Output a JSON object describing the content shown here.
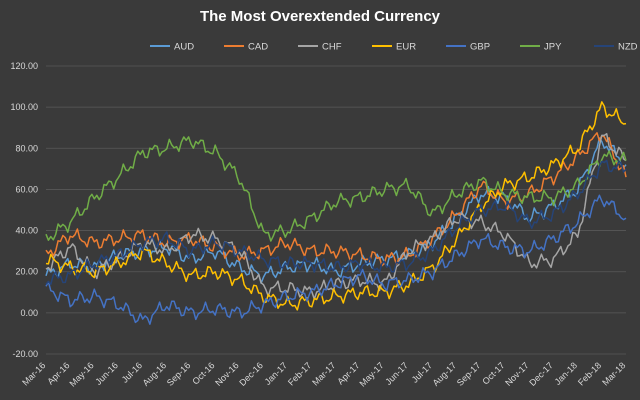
{
  "chart_data": {
    "type": "line",
    "title": "The Most Overextended Currency",
    "ylim": [
      -20,
      120
    ],
    "yticks": [
      "-20.00",
      "0.00",
      "20.00",
      "40.00",
      "60.00",
      "80.00",
      "100.00",
      "120.00"
    ],
    "categories": [
      "Mar-16",
      "Apr-16",
      "May-16",
      "Jun-16",
      "Jul-16",
      "Aug-16",
      "Sep-16",
      "Oct-16",
      "Nov-16",
      "Dec-16",
      "Jan-17",
      "Feb-17",
      "Mar-17",
      "Apr-17",
      "May-17",
      "Jun-17",
      "Jul-17",
      "Aug-17",
      "Sep-17",
      "Oct-17",
      "Nov-17",
      "Dec-17",
      "Jan-18",
      "Feb-18",
      "Mar-18"
    ],
    "legend_position": "top",
    "grid": true,
    "series": [
      {
        "name": "AUD",
        "color": "#5b9bd5",
        "values": [
          18,
          24,
          22,
          28,
          30,
          32,
          26,
          30,
          22,
          18,
          22,
          24,
          20,
          24,
          26,
          28,
          34,
          46,
          58,
          56,
          46,
          52,
          60,
          84,
          72
        ]
      },
      {
        "name": "CAD",
        "color": "#ed7d31",
        "values": [
          28,
          38,
          34,
          36,
          38,
          34,
          36,
          32,
          28,
          30,
          34,
          30,
          30,
          28,
          26,
          28,
          36,
          48,
          62,
          54,
          58,
          66,
          76,
          88,
          66
        ]
      },
      {
        "name": "CHF",
        "color": "#a5a5a5",
        "values": [
          22,
          32,
          20,
          26,
          34,
          30,
          38,
          36,
          30,
          12,
          12,
          10,
          14,
          16,
          14,
          30,
          36,
          46,
          44,
          38,
          24,
          26,
          38,
          86,
          74
        ]
      },
      {
        "name": "EUR",
        "color": "#ffc000",
        "values": [
          26,
          22,
          20,
          24,
          30,
          24,
          18,
          20,
          16,
          8,
          4,
          6,
          8,
          10,
          10,
          14,
          22,
          36,
          52,
          62,
          66,
          72,
          80,
          100,
          92
        ]
      },
      {
        "name": "GBP",
        "color": "#4472c4",
        "values": [
          12,
          6,
          8,
          4,
          -4,
          4,
          0,
          2,
          0,
          4,
          8,
          10,
          14,
          18,
          14,
          16,
          20,
          28,
          36,
          32,
          30,
          36,
          44,
          56,
          46
        ]
      },
      {
        "name": "JPY",
        "color": "#70ad47",
        "values": [
          36,
          44,
          56,
          66,
          78,
          80,
          84,
          78,
          66,
          38,
          40,
          46,
          54,
          56,
          60,
          62,
          48,
          58,
          64,
          58,
          56,
          56,
          62,
          76,
          74
        ]
      },
      {
        "name": "NZD",
        "color": "#264478",
        "values": [
          16,
          18,
          24,
          28,
          34,
          36,
          30,
          34,
          30,
          26,
          24,
          24,
          22,
          24,
          22,
          24,
          30,
          42,
          50,
          52,
          44,
          48,
          58,
          72,
          70
        ]
      }
    ]
  }
}
